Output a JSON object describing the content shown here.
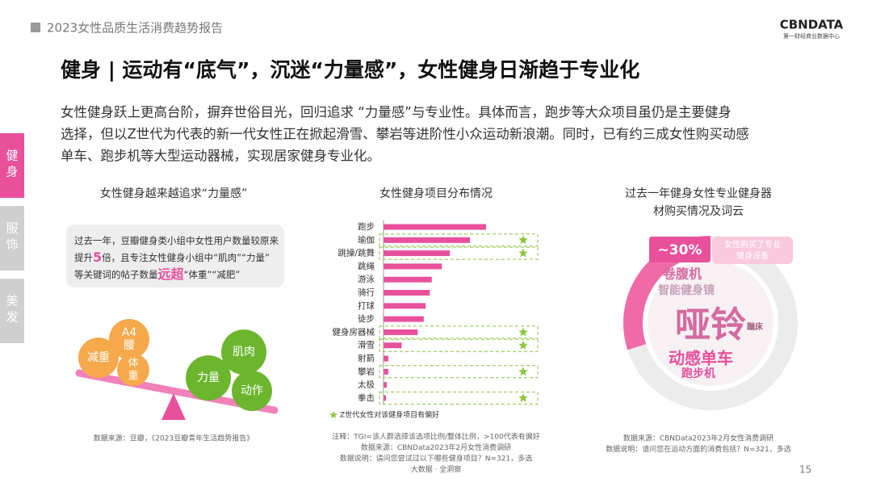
{
  "header": {
    "report": "2023女性品质生活消费趋势报告",
    "logo": "CBNDATA",
    "logo_sub": "第一财经商业数据中心",
    "page": "15"
  },
  "title": "健身 | 运动有“底气”，沉迷“力量感”，女性健身日渐趋于专业化",
  "intro": [
    "女性健身跃上更高台阶，摒弃世俗目光，回归追求 “力量感”与专业性。具体而言，跑步等大众项目虽仍是主要健身",
    "选择，但以Z世代为代表的新一代女性正在掀起滑雪、攀岩等进阶性小众运动新浪潮。同时，已有约三成女性购买动感",
    "单车、跑步机等大型运动器械，实现居家健身专业化。"
  ],
  "tabs": [
    "健身",
    "服饰",
    "美发"
  ],
  "left": {
    "heading": "女性健身越来越追求“力量感”",
    "callout": [
      [
        "过去一年，豆瓣健身类小组中女性用户数量较原来"
      ],
      [
        "提升",
        "5",
        "倍，且专注女性健身小组中“肌肉”“力量”"
      ],
      [
        "等关键词的帖子数量",
        "远超",
        "“体重”“减肥”"
      ]
    ],
    "light_side": [
      "减重",
      "A4\n腰",
      "体\n重"
    ],
    "heavy_side": [
      "力量",
      "肌肉",
      "动作"
    ],
    "source": "数据来源：豆瓣，《2023豆瓣青年生活趋势报告》"
  },
  "chart_data": [
    {
      "type": "hbar",
      "title": "女性健身项目分布情况",
      "categories": [
        "跑步",
        "瑜伽",
        "跳操/跳舞",
        "跳绳",
        "游泳",
        "骑行",
        "打球",
        "徒步",
        "健身房器械",
        "滑雪",
        "射箭",
        "攀岩",
        "太极",
        "拳击"
      ],
      "values": [
        51,
        43,
        33,
        29,
        24,
        23,
        21,
        20,
        17,
        9,
        2.4,
        2.4,
        1.6,
        1.2
      ],
      "starred": [
        false,
        true,
        true,
        false,
        false,
        false,
        false,
        false,
        true,
        true,
        false,
        true,
        false,
        true
      ],
      "color": "#e9509c",
      "star_color": "#8cc63f",
      "legend": "Z世代女性对该健身项目有偏好",
      "notes": [
        "注释：TGI=该人群选择该选项比例/整体比例，>100代表有偏好",
        "数据来源：CBNData2023年2月女性消费调研",
        "数据说明：请问您尝试过以下哪些健身项目？N=321，多选",
        "大数据 · 全洞察"
      ]
    },
    {
      "type": "donut",
      "title": [
        "过去一年健身女性专业健身器",
        "材购买情况及词云"
      ],
      "values": [
        30
      ],
      "value_labels": [
        "~30%"
      ],
      "label": "女性购买了专业健身设备",
      "color": "#f06aa8",
      "words": [
        "哑铃",
        "动感单车",
        "卷腹机",
        "智能健身镜",
        "跑步机",
        "蹦床"
      ],
      "notes": [
        "数据来源：CBNData2023年2月女性消费调研",
        "数据说明：请问您在运动方面的消费包括？N=321，多选"
      ]
    }
  ]
}
